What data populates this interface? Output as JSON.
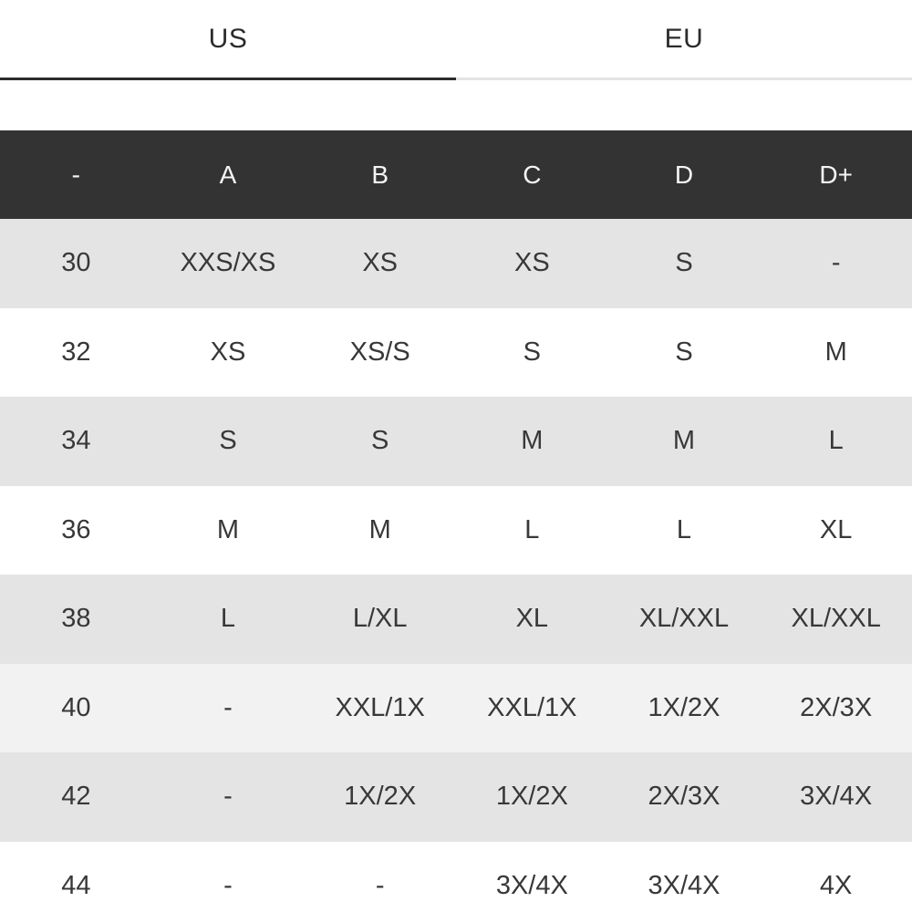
{
  "tabs": [
    {
      "label": "US",
      "active": true
    },
    {
      "label": "EU",
      "active": false
    }
  ],
  "size_chart": {
    "columns": [
      "-",
      "A",
      "B",
      "C",
      "D",
      "D+"
    ],
    "rows": [
      {
        "band": "30",
        "cells": [
          "XXS/XS",
          "XS",
          "XS",
          "S",
          "-"
        ],
        "highlighted": false
      },
      {
        "band": "32",
        "cells": [
          "XS",
          "XS/S",
          "S",
          "S",
          "M"
        ],
        "highlighted": false
      },
      {
        "band": "34",
        "cells": [
          "S",
          "S",
          "M",
          "M",
          "L"
        ],
        "highlighted": false
      },
      {
        "band": "36",
        "cells": [
          "M",
          "M",
          "L",
          "L",
          "XL"
        ],
        "highlighted": false
      },
      {
        "band": "38",
        "cells": [
          "L",
          "L/XL",
          "XL",
          "XL/XXL",
          "XL/XXL"
        ],
        "highlighted": false
      },
      {
        "band": "40",
        "cells": [
          "-",
          "XXL/1X",
          "XXL/1X",
          "1X/2X",
          "2X/3X"
        ],
        "highlighted": true
      },
      {
        "band": "42",
        "cells": [
          "-",
          "1X/2X",
          "1X/2X",
          "2X/3X",
          "3X/4X"
        ],
        "highlighted": false
      },
      {
        "band": "44",
        "cells": [
          "-",
          "-",
          "3X/4X",
          "3X/4X",
          "4X"
        ],
        "highlighted": false
      }
    ]
  },
  "colors": {
    "header_bg": "#333333",
    "header_text": "#f5f5f5",
    "row_gray": "#e4e4e4",
    "row_white": "#ffffff",
    "row_highlight": "#f2f2f2",
    "cell_text": "#383838",
    "tab_text": "#2b2b2b",
    "active_tab_underline": "#2b2b2b",
    "inactive_tab_underline": "#e4e4e4"
  }
}
